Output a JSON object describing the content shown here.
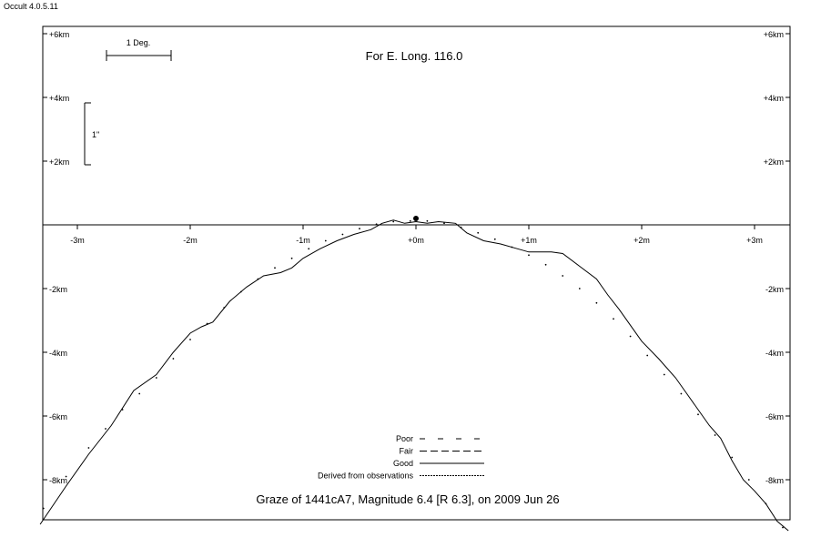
{
  "app": {
    "version_label": "Occult 4.0.5.11"
  },
  "chart_data": {
    "type": "line",
    "title": "Graze of  1441cA7,  Magnitude 6.4 [R 6.3],  on 2009 Jun 26",
    "subtitle": "For E. Long. 116.0",
    "xlabel": "",
    "ylabel": "",
    "xlim": [
      -3.33,
      3.3
    ],
    "ylim": [
      -9.4,
      6.3
    ],
    "grid": false,
    "x_ticks": [
      {
        "v": -3,
        "label": "-3m"
      },
      {
        "v": -2,
        "label": "-2m"
      },
      {
        "v": -1,
        "label": "-1m"
      },
      {
        "v": 0,
        "label": "+0m"
      },
      {
        "v": 1,
        "label": "+1m"
      },
      {
        "v": 2,
        "label": "+2m"
      },
      {
        "v": 3,
        "label": "+3m"
      }
    ],
    "y_ticks": [
      {
        "v": 6,
        "label": "+6km"
      },
      {
        "v": 4,
        "label": "+4km"
      },
      {
        "v": 2,
        "label": "+2km"
      },
      {
        "v": -2,
        "label": "-2km"
      },
      {
        "v": -4,
        "label": "-4km"
      },
      {
        "v": -6,
        "label": "-6km"
      },
      {
        "v": -8,
        "label": "-8km"
      }
    ],
    "scale_bars": {
      "degree_label": "1 Deg.",
      "arcsec_label": "1\""
    },
    "star_point": {
      "x": 0.0,
      "y": 0.2
    },
    "legend": {
      "placement": "bottom-center",
      "entries": [
        {
          "label": "Poor",
          "style": "sparse-dash"
        },
        {
          "label": "Fair",
          "style": "dash"
        },
        {
          "label": "Good",
          "style": "solid"
        },
        {
          "label": "Derived from observations",
          "style": "fine-dash"
        }
      ]
    },
    "series": [
      {
        "style": "solid",
        "points": [
          [
            -3.33,
            -9.4
          ],
          [
            -3.1,
            -8.2
          ],
          [
            -2.9,
            -7.2
          ],
          [
            -2.7,
            -6.3
          ],
          [
            -2.5,
            -5.2
          ],
          [
            -2.3,
            -4.7
          ],
          [
            -2.15,
            -4.0
          ],
          [
            -2.0,
            -3.4
          ],
          [
            -1.9,
            -3.2
          ],
          [
            -1.8,
            -3.05
          ],
          [
            -1.65,
            -2.4
          ],
          [
            -1.5,
            -1.95
          ],
          [
            -1.35,
            -1.6
          ],
          [
            -1.2,
            -1.5
          ],
          [
            -1.1,
            -1.35
          ],
          [
            -1.0,
            -1.05
          ],
          [
            -0.85,
            -0.75
          ],
          [
            -0.7,
            -0.5
          ],
          [
            -0.55,
            -0.3
          ],
          [
            -0.4,
            -0.15
          ],
          [
            -0.3,
            0.05
          ],
          [
            -0.2,
            0.15
          ],
          [
            -0.1,
            0.05
          ],
          [
            0.0,
            0.1
          ],
          [
            0.1,
            0.05
          ],
          [
            0.2,
            0.1
          ],
          [
            0.35,
            0.05
          ],
          [
            0.45,
            -0.25
          ],
          [
            0.6,
            -0.5
          ],
          [
            0.75,
            -0.6
          ],
          [
            0.9,
            -0.75
          ],
          [
            1.0,
            -0.85
          ],
          [
            1.2,
            -0.85
          ],
          [
            1.3,
            -0.9
          ],
          [
            1.45,
            -1.3
          ],
          [
            1.6,
            -1.7
          ],
          [
            1.7,
            -2.2
          ],
          [
            1.8,
            -2.65
          ],
          [
            1.9,
            -3.15
          ],
          [
            2.0,
            -3.65
          ],
          [
            2.15,
            -4.2
          ],
          [
            2.3,
            -4.8
          ],
          [
            2.4,
            -5.3
          ],
          [
            2.5,
            -5.8
          ],
          [
            2.6,
            -6.3
          ],
          [
            2.7,
            -6.7
          ],
          [
            2.8,
            -7.4
          ],
          [
            2.9,
            -8.0
          ],
          [
            3.0,
            -8.35
          ],
          [
            3.1,
            -8.75
          ],
          [
            3.2,
            -9.3
          ],
          [
            3.3,
            -9.6
          ]
        ]
      },
      {
        "style": "dotted",
        "points": [
          [
            -3.3,
            -8.9
          ],
          [
            -3.1,
            -7.9
          ],
          [
            -2.9,
            -7.0
          ],
          [
            -2.75,
            -6.4
          ],
          [
            -2.6,
            -5.8
          ],
          [
            -2.45,
            -5.3
          ],
          [
            -2.3,
            -4.8
          ],
          [
            -2.15,
            -4.2
          ],
          [
            -2.0,
            -3.6
          ],
          [
            -1.85,
            -3.1
          ],
          [
            -1.7,
            -2.6
          ],
          [
            -1.55,
            -2.1
          ],
          [
            -1.4,
            -1.7
          ],
          [
            -1.25,
            -1.35
          ],
          [
            -1.1,
            -1.05
          ],
          [
            -0.95,
            -0.75
          ],
          [
            -0.8,
            -0.5
          ],
          [
            -0.65,
            -0.3
          ],
          [
            -0.5,
            -0.12
          ],
          [
            -0.35,
            0.02
          ],
          [
            -0.2,
            0.1
          ],
          [
            -0.05,
            0.12
          ],
          [
            0.1,
            0.12
          ],
          [
            0.25,
            0.05
          ],
          [
            0.4,
            -0.08
          ],
          [
            0.55,
            -0.25
          ],
          [
            0.7,
            -0.45
          ],
          [
            0.85,
            -0.7
          ],
          [
            1.0,
            -0.95
          ],
          [
            1.15,
            -1.25
          ],
          [
            1.3,
            -1.6
          ],
          [
            1.45,
            -2.0
          ],
          [
            1.6,
            -2.45
          ],
          [
            1.75,
            -2.95
          ],
          [
            1.9,
            -3.5
          ],
          [
            2.05,
            -4.1
          ],
          [
            2.2,
            -4.7
          ],
          [
            2.35,
            -5.3
          ],
          [
            2.5,
            -5.95
          ],
          [
            2.65,
            -6.6
          ],
          [
            2.8,
            -7.3
          ],
          [
            2.95,
            -8.0
          ],
          [
            3.1,
            -8.75
          ],
          [
            3.25,
            -9.5
          ]
        ]
      }
    ]
  }
}
